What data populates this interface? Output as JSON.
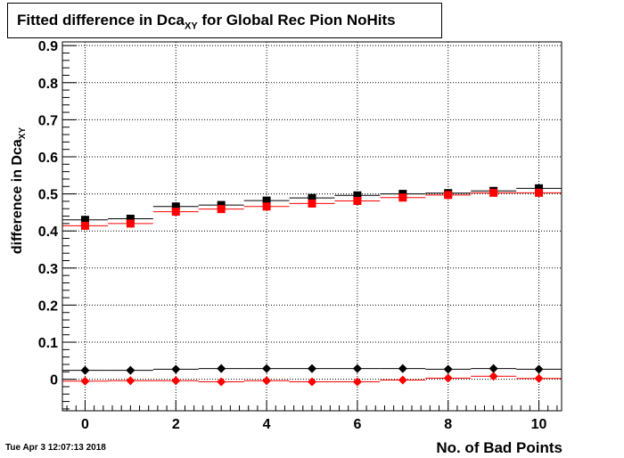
{
  "title": {
    "prefix": "Fitted difference in Dca",
    "subscript": "XY",
    "suffix": " for Global Rec Pion NoHits"
  },
  "timestamp": "Tue Apr  3 12:07:13 2018",
  "chart_data": {
    "type": "scatter",
    "xlabel": "No. of Bad Points",
    "ylabel": {
      "main": "difference in Dca",
      "subscript": "XY"
    },
    "xlim": [
      -0.5,
      10.5
    ],
    "ylim": [
      -0.085,
      0.91
    ],
    "x_ticks": [
      0,
      2,
      4,
      6,
      8,
      10
    ],
    "y_ticks": [
      0,
      0.1,
      0.2,
      0.3,
      0.4,
      0.5,
      0.6,
      0.7,
      0.8,
      0.9
    ],
    "y_tick_labels": [
      "0",
      "0.1",
      "0.2",
      "0.3",
      "0.4",
      "0.5",
      "0.6",
      "0.7",
      "0.8",
      "0.9"
    ],
    "grid": true,
    "x": [
      0,
      1,
      2,
      3,
      4,
      5,
      6,
      7,
      8,
      9,
      10
    ],
    "series": [
      {
        "marker": "square",
        "color": "#000000",
        "values": [
          0.43,
          0.433,
          0.466,
          0.47,
          0.482,
          0.489,
          0.496,
          0.5,
          0.502,
          0.508,
          0.515
        ]
      },
      {
        "marker": "square",
        "color": "#ff0000",
        "values": [
          0.414,
          0.42,
          0.452,
          0.459,
          0.466,
          0.474,
          0.481,
          0.49,
          0.497,
          0.503,
          0.503
        ]
      },
      {
        "marker": "diamond",
        "color": "#000000",
        "values": [
          0.024,
          0.024,
          0.027,
          0.029,
          0.029,
          0.029,
          0.029,
          0.029,
          0.027,
          0.029,
          0.027
        ]
      },
      {
        "marker": "diamond",
        "color": "#ff0000",
        "values": [
          -0.005,
          -0.004,
          -0.004,
          -0.007,
          -0.004,
          -0.007,
          -0.007,
          -0.002,
          0.003,
          0.008,
          0.002
        ]
      }
    ]
  }
}
